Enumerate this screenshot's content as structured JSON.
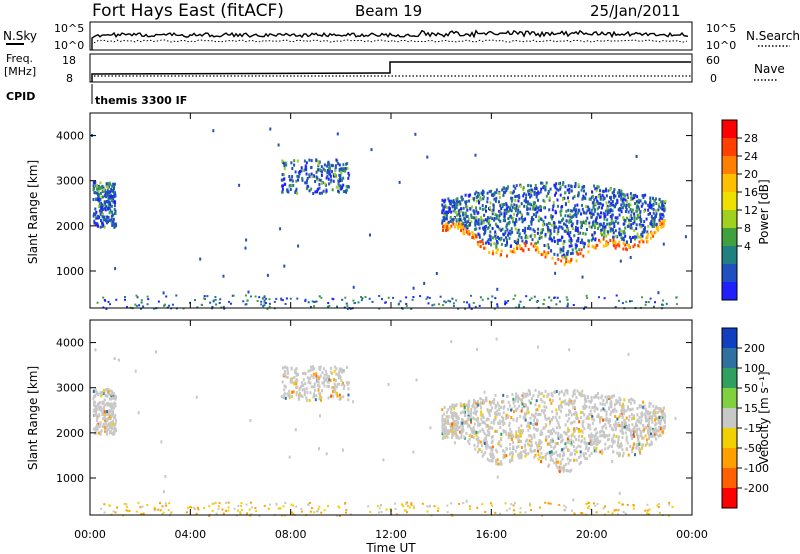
{
  "header": {
    "station": "Fort Hays East (fitACF)",
    "beam": "Beam 19",
    "date": "25/Jan/2011"
  },
  "top_panels": {
    "nsky_label": "N.Sky",
    "nsearch_label": "N.Search",
    "noise_ticks_left": [
      "10^5",
      "10^0"
    ],
    "noise_ticks_right": [
      "10^5",
      "10^0"
    ],
    "freq_label": "Freq.",
    "freq_unit": "[MHz]",
    "freq_ticks": [
      "18",
      "8"
    ],
    "nave_label": "Nave",
    "nave_ticks": [
      "60",
      "0"
    ],
    "cpid_label": "CPID",
    "cpid_text": "themis 3300 IF"
  },
  "power_colorbar": {
    "title": "Power [dB]",
    "ticks": [
      "28",
      "24",
      "20",
      "16",
      "12",
      "8",
      "4"
    ],
    "colors": [
      "#ff0000",
      "#ff4000",
      "#ff8000",
      "#ffc000",
      "#f0e000",
      "#a0d020",
      "#40a040",
      "#208080",
      "#2050c0",
      "#2020ff"
    ]
  },
  "velocity_colorbar": {
    "title": "Velocity [m s⁻¹]",
    "ticks": [
      "200",
      "100",
      "50",
      "15",
      "-15",
      "-50",
      "-100",
      "-200"
    ],
    "colors": [
      "#1040c0",
      "#3070a0",
      "#30a060",
      "#80d040",
      "#c8c8c8",
      "#f0d000",
      "#ffa000",
      "#ff6000",
      "#ff0000"
    ]
  },
  "chart_data": [
    {
      "type": "heatmap",
      "title": "",
      "xlabel": "",
      "ylabel": "Slant Range [km]",
      "yticks": [
        "1000",
        "2000",
        "3000",
        "4000"
      ],
      "ylim": [
        180,
        4500
      ],
      "xlim": [
        0,
        24
      ],
      "quantity": "Power [dB]",
      "echo_regions": [
        {
          "t_start": 0.1,
          "t_end": 1.0,
          "r_low": 2000,
          "r_high": 3000,
          "power": 8
        },
        {
          "t_start": 7.6,
          "t_end": 10.3,
          "r_low": 2750,
          "r_high": 3500,
          "power": 6
        },
        {
          "t_start": 14.0,
          "t_end": 22.9,
          "r_low": 1300,
          "r_high": 3000,
          "power": 14
        }
      ]
    },
    {
      "type": "heatmap",
      "title": "",
      "xlabel": "Time UT",
      "ylabel": "Slant Range [km]",
      "yticks": [
        "1000",
        "2000",
        "3000",
        "4000"
      ],
      "xticks": [
        "00:00",
        "04:00",
        "08:00",
        "12:00",
        "16:00",
        "20:00",
        "00:00"
      ],
      "ylim": [
        180,
        4500
      ],
      "xlim": [
        0,
        24
      ],
      "quantity": "Velocity [m s⁻¹]",
      "echo_regions": [
        {
          "t_start": 0.1,
          "t_end": 1.0,
          "r_low": 2000,
          "r_high": 3000,
          "velocity": 0
        },
        {
          "t_start": 7.6,
          "t_end": 10.3,
          "r_low": 2750,
          "r_high": 3500,
          "velocity": 0
        },
        {
          "t_start": 14.0,
          "t_end": 22.9,
          "r_low": 1300,
          "r_high": 3000,
          "velocity": 0
        }
      ]
    }
  ]
}
